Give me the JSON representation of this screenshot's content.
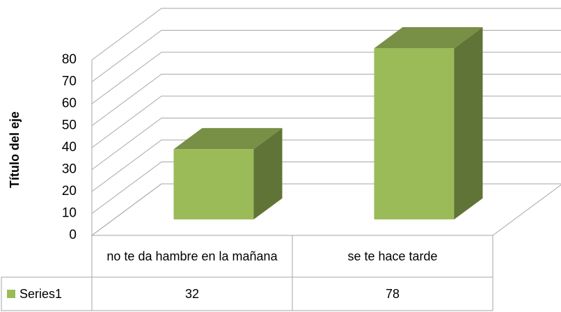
{
  "chart_data": {
    "type": "bar3d",
    "y_axis_label": "Título del eje",
    "categories": [
      "no te da hambre en la mañana",
      "se te hace tarde"
    ],
    "series": [
      {
        "name": "Series1",
        "color": "#9bbb59",
        "values": [
          32,
          78
        ]
      }
    ],
    "ylim": [
      0,
      80
    ],
    "yticks": [
      0,
      10,
      20,
      30,
      40,
      50,
      60,
      70,
      80
    ],
    "grid": true,
    "data_table": true
  }
}
